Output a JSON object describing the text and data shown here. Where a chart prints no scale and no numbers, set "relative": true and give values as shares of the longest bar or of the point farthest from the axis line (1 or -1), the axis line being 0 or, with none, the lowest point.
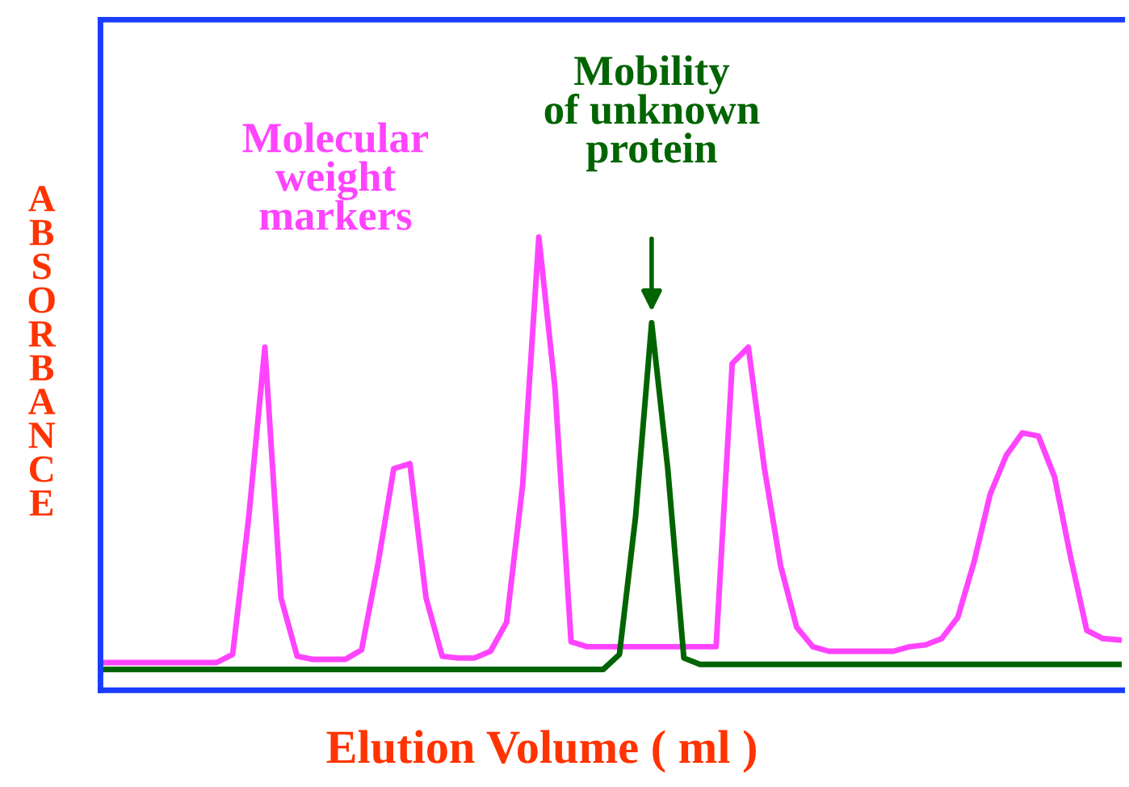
{
  "chart_data": {
    "type": "line",
    "relative": true,
    "xlabel": "Elution Volume ( ml )",
    "ylabel": "ABSORBANCE",
    "annotations": [
      "Molecular weight markers",
      "Mobility of unknown protein"
    ],
    "categories": [
      null,
      null,
      null,
      null,
      null,
      null,
      null,
      null,
      null,
      null,
      null,
      null,
      null,
      null,
      null,
      null,
      null,
      null,
      null,
      null,
      null,
      null,
      null,
      null,
      null,
      null,
      null,
      null,
      null,
      null,
      null,
      null,
      null,
      null,
      null,
      null,
      null,
      null,
      null,
      null,
      null,
      null,
      null,
      null,
      null,
      null,
      null,
      null,
      null,
      null,
      null,
      null,
      null,
      null,
      null,
      null,
      null,
      null,
      null,
      null,
      null,
      null,
      null,
      null
    ],
    "series": [
      {
        "color": "#ff44ff",
        "values": [
          0.061,
          0.061,
          0.061,
          0.061,
          0.061,
          0.061,
          0.061,
          0.061,
          0.079,
          0.382,
          0.757,
          0.204,
          0.075,
          0.068,
          0.068,
          0.068,
          0.089,
          0.275,
          0.489,
          0.5,
          0.204,
          0.075,
          0.071,
          0.071,
          0.086,
          0.15,
          0.454,
          1,
          0.668,
          0.107,
          0.096,
          0.096,
          0.096,
          0.096,
          0.096,
          0.096,
          0.096,
          0.096,
          0.096,
          0.721,
          0.757,
          0.489,
          0.275,
          0.139,
          0.096,
          0.086,
          0.086,
          0.086,
          0.086,
          0.086,
          0.096,
          0.1,
          0.114,
          0.161,
          0.282,
          0.432,
          0.518,
          0.568,
          0.561,
          0.471,
          0.293,
          0.132,
          0.114,
          0.111
        ]
      },
      {
        "color": "#006400",
        "values": [
          0.046,
          0.046,
          0.046,
          0.046,
          0.046,
          0.046,
          0.046,
          0.046,
          0.046,
          0.046,
          0.046,
          0.046,
          0.046,
          0.046,
          0.046,
          0.046,
          0.046,
          0.046,
          0.046,
          0.046,
          0.046,
          0.046,
          0.046,
          0.046,
          0.046,
          0.046,
          0.046,
          0.046,
          0.046,
          0.046,
          0.046,
          0.046,
          0.079,
          0.382,
          0.811,
          0.489,
          0.071,
          0.057,
          0.057,
          0.057,
          0.057,
          0.057,
          0.057,
          0.057,
          0.057,
          0.057,
          0.057,
          0.057,
          0.057,
          0.057,
          0.057,
          0.057,
          0.057,
          0.057,
          0.057,
          0.057,
          0.057,
          0.057,
          0.057,
          0.057,
          0.057,
          0.057,
          0.057,
          0.057
        ]
      }
    ],
    "legend": false,
    "marker": "none",
    "line_style": "solid"
  }
}
